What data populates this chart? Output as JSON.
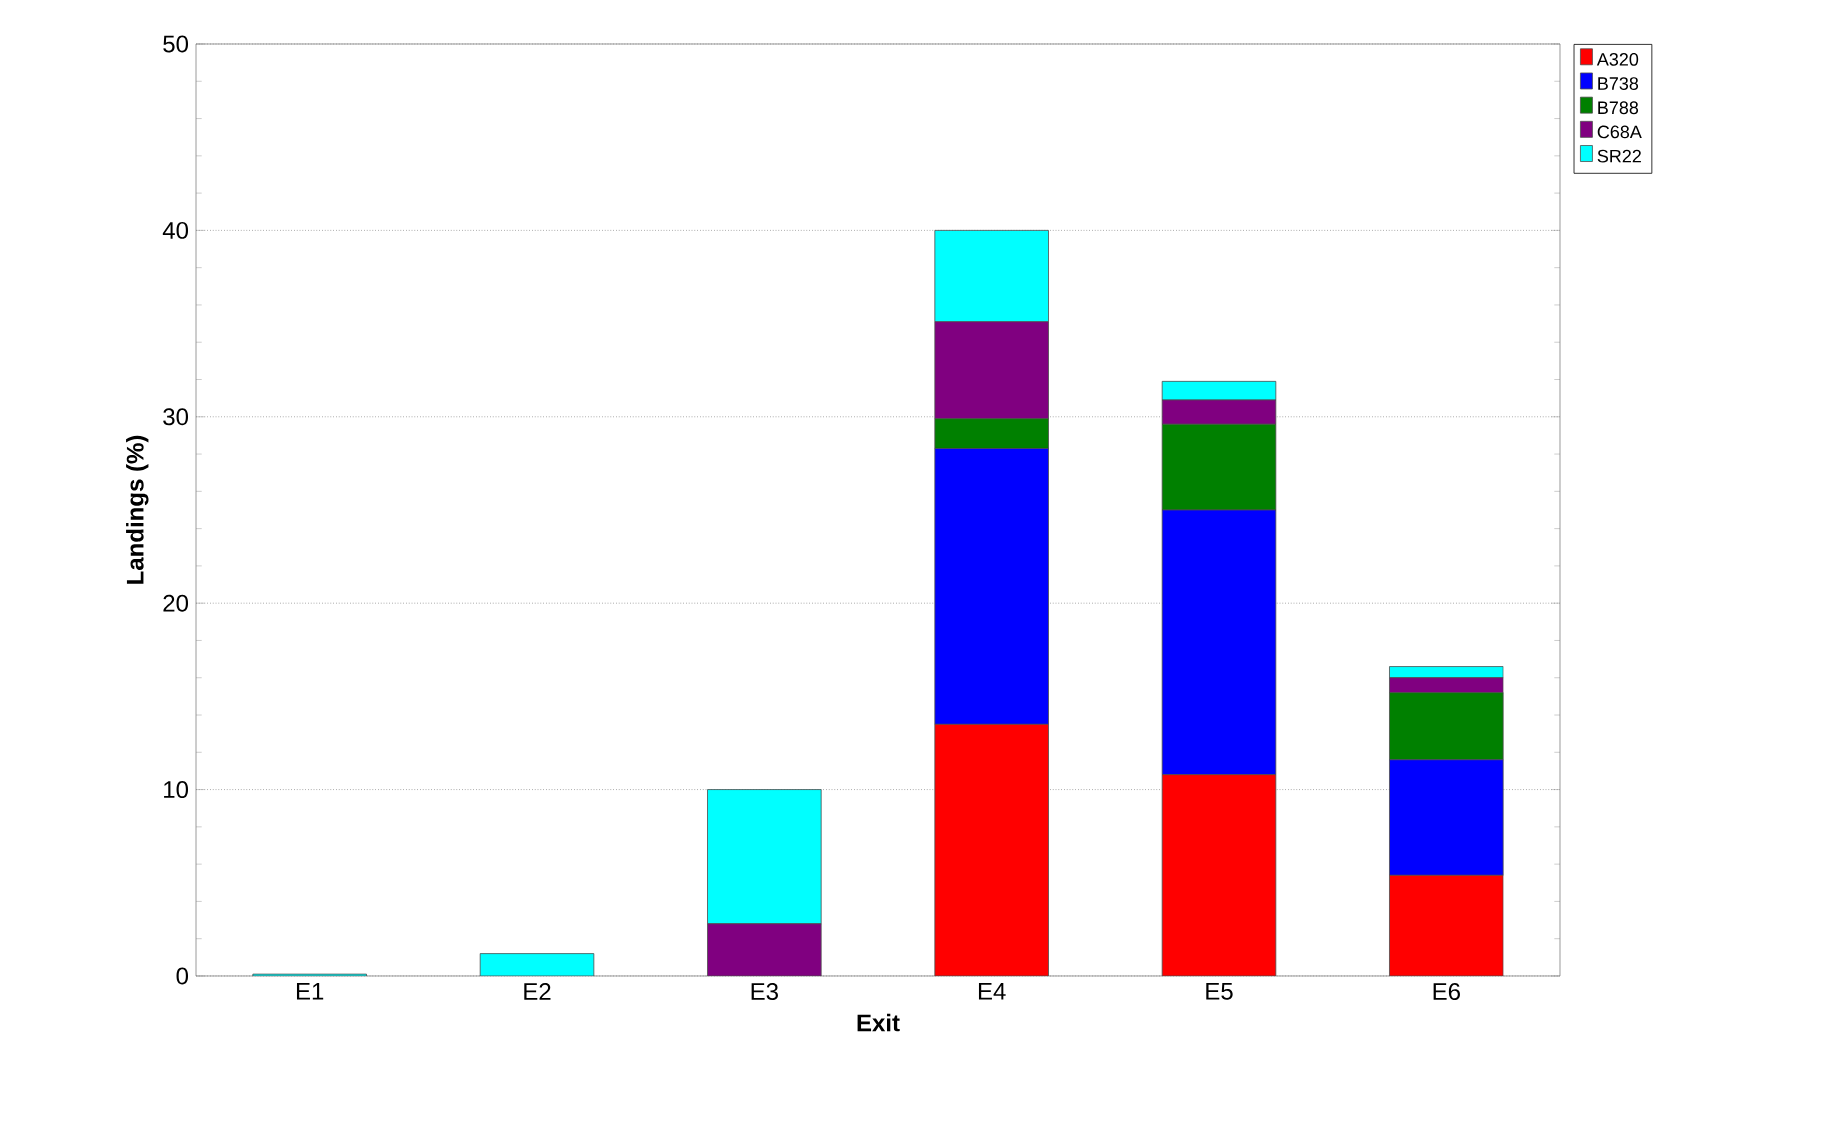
{
  "chart_data": {
    "type": "bar",
    "stacked": true,
    "xlabel": "Exit",
    "ylabel": "Landings (%)",
    "categories": [
      "E1",
      "E2",
      "E3",
      "E4",
      "E5",
      "E6"
    ],
    "series": [
      {
        "name": "A320",
        "color": "#ff0000",
        "values": [
          0,
          0,
          0,
          13.5,
          10.8,
          5.4
        ]
      },
      {
        "name": "B738",
        "color": "#0000ff",
        "values": [
          0,
          0,
          0,
          14.8,
          14.2,
          6.2
        ]
      },
      {
        "name": "B788",
        "color": "#008000",
        "values": [
          0,
          0,
          0,
          1.6,
          4.6,
          3.6
        ]
      },
      {
        "name": "C68A",
        "color": "#800080",
        "values": [
          0,
          0,
          2.8,
          5.2,
          1.3,
          0.8
        ]
      },
      {
        "name": "SR22",
        "color": "#00ffff",
        "values": [
          0.1,
          1.2,
          7.2,
          4.9,
          1.0,
          0.6
        ]
      }
    ],
    "ylim": [
      0,
      50
    ],
    "yticks": [
      0,
      10,
      20,
      30,
      40,
      50
    ],
    "grid": "y",
    "legend": "top right"
  }
}
